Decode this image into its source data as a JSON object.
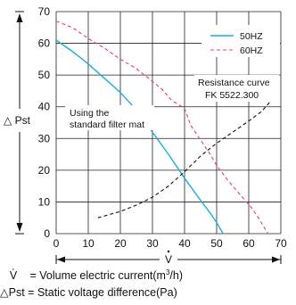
{
  "chart_data": {
    "type": "line",
    "xlim": [
      0,
      70
    ],
    "ylim": [
      0,
      70
    ],
    "x_ticks": [
      "0",
      "10",
      "20",
      "30",
      "40",
      "50",
      "60",
      "70"
    ],
    "y_ticks": [
      "0",
      "10",
      "20",
      "30",
      "40",
      "50",
      "60",
      "70"
    ],
    "grid": true,
    "xlabel": "V",
    "ylabel": "△ Pst",
    "legend_position": "top-right",
    "series": [
      {
        "name": "50HZ",
        "color": "#1aaee0",
        "style": "solid",
        "points": [
          [
            0,
            61
          ],
          [
            5,
            57.5
          ],
          [
            10,
            53.5
          ],
          [
            15,
            49
          ],
          [
            20,
            44.5
          ],
          [
            25,
            39
          ],
          [
            30,
            32
          ],
          [
            35,
            25
          ],
          [
            40,
            17.5
          ],
          [
            45,
            10.5
          ],
          [
            48,
            6.5
          ],
          [
            50,
            3.5
          ],
          [
            52,
            0
          ]
        ]
      },
      {
        "name": "60HZ",
        "color": "#e8388a",
        "style": "dashed",
        "points": [
          [
            0,
            67
          ],
          [
            5,
            65
          ],
          [
            10,
            61.5
          ],
          [
            15,
            58.5
          ],
          [
            20,
            55
          ],
          [
            25,
            52
          ],
          [
            30,
            48
          ],
          [
            33,
            45.5
          ],
          [
            36,
            42
          ],
          [
            40,
            39.5
          ],
          [
            42,
            34
          ],
          [
            44,
            31
          ],
          [
            46,
            28
          ],
          [
            48,
            25
          ],
          [
            50,
            21.5
          ],
          [
            53,
            17.5
          ],
          [
            55,
            15
          ],
          [
            58,
            11.5
          ],
          [
            61,
            8
          ],
          [
            63,
            5
          ],
          [
            66,
            0
          ]
        ]
      },
      {
        "name": "Resistance curve",
        "color": "#111111",
        "style": "dashed",
        "points": [
          [
            13,
            5
          ],
          [
            20,
            7
          ],
          [
            25,
            9
          ],
          [
            30,
            11.5
          ],
          [
            35,
            15
          ],
          [
            40,
            19.5
          ],
          [
            45,
            24.5
          ],
          [
            50,
            28.5
          ],
          [
            55,
            32
          ],
          [
            60,
            35.5
          ],
          [
            64,
            38.5
          ],
          [
            67,
            42
          ]
        ]
      }
    ],
    "annotations": {
      "resistance_line1": "Resistance curve",
      "resistance_line2": "FK 5522.300",
      "filter_line1": "Using the",
      "filter_line2": "standard filter mat"
    }
  },
  "footer": {
    "v_symbol": "V",
    "v_text": "= Volume electric current(m",
    "v_sup": "3",
    "v_end": "/h)",
    "p_symbol": "△Pst",
    "p_text": "= Static voltage difference(Pa)"
  }
}
